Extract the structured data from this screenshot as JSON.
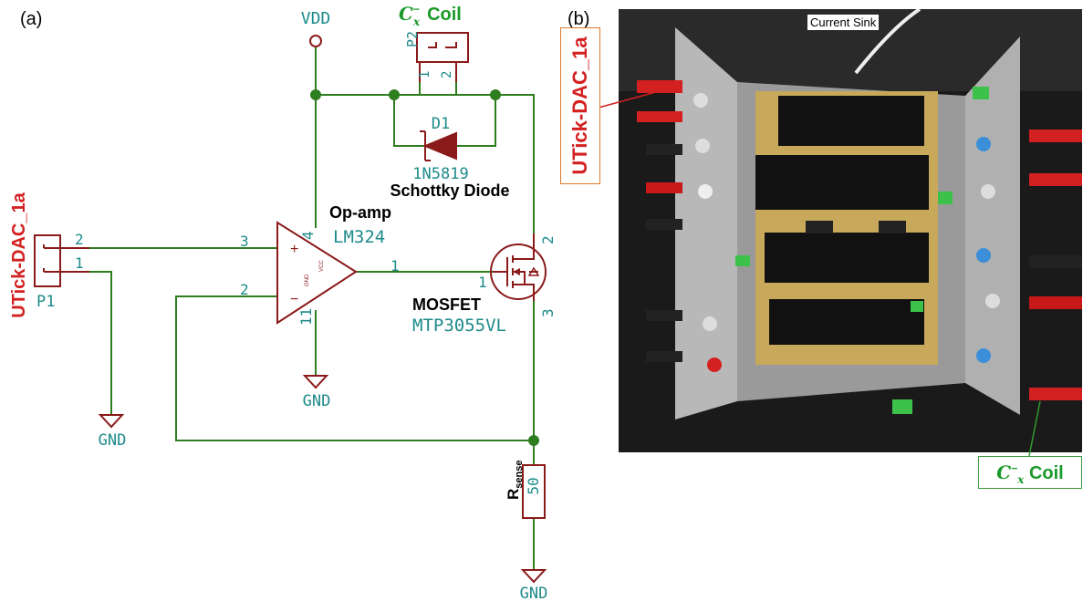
{
  "panel_a": {
    "label": "(a)"
  },
  "panel_b": {
    "label": "(b)"
  },
  "schematic": {
    "vdd": "VDD",
    "gnd_left": "GND",
    "gnd_opamp": "GND",
    "gnd_bottom": "GND",
    "coil_connector": {
      "ref": "P2",
      "pin1": "1",
      "pin2": "2",
      "title_math": "C",
      "title_sup": "−",
      "title_sub": "x",
      "title_word": "Coil"
    },
    "diode": {
      "ref": "D1",
      "value": "1N5819",
      "desc": "Schottky Diode"
    },
    "opamp": {
      "desc": "Op-amp",
      "value": "LM324",
      "pin_plus": "3",
      "pin_minus": "2",
      "pin_out": "1",
      "pin_vcc": "4",
      "pin_gnd": "11",
      "plus_sign": "+",
      "minus_sign": "−",
      "vcc_text": "VCC",
      "gnd_text": "GND"
    },
    "connector_p1": {
      "ref": "P1",
      "pin2": "2",
      "pin1": "1",
      "side_label": "UTick-DAC_1a"
    },
    "mosfet": {
      "desc": "MOSFET",
      "value": "MTP3055VL",
      "pin_gate": "1",
      "pin_drain": "2",
      "pin_source": "3"
    },
    "resistor": {
      "label_main": "R",
      "label_sub": "sense",
      "value": "50"
    }
  },
  "photo": {
    "title": "Current Sink",
    "callout_left": "UTick-DAC_1a",
    "callout_right_math": "C",
    "callout_right_sup": "−",
    "callout_right_sub": "x",
    "callout_right_word": "Coil"
  },
  "colors": {
    "wire": "#2e7d1e",
    "part": "#8b1a1a",
    "designator": "#1e8a8a",
    "red_label": "#d42020",
    "green_label": "#1b9a2a"
  }
}
